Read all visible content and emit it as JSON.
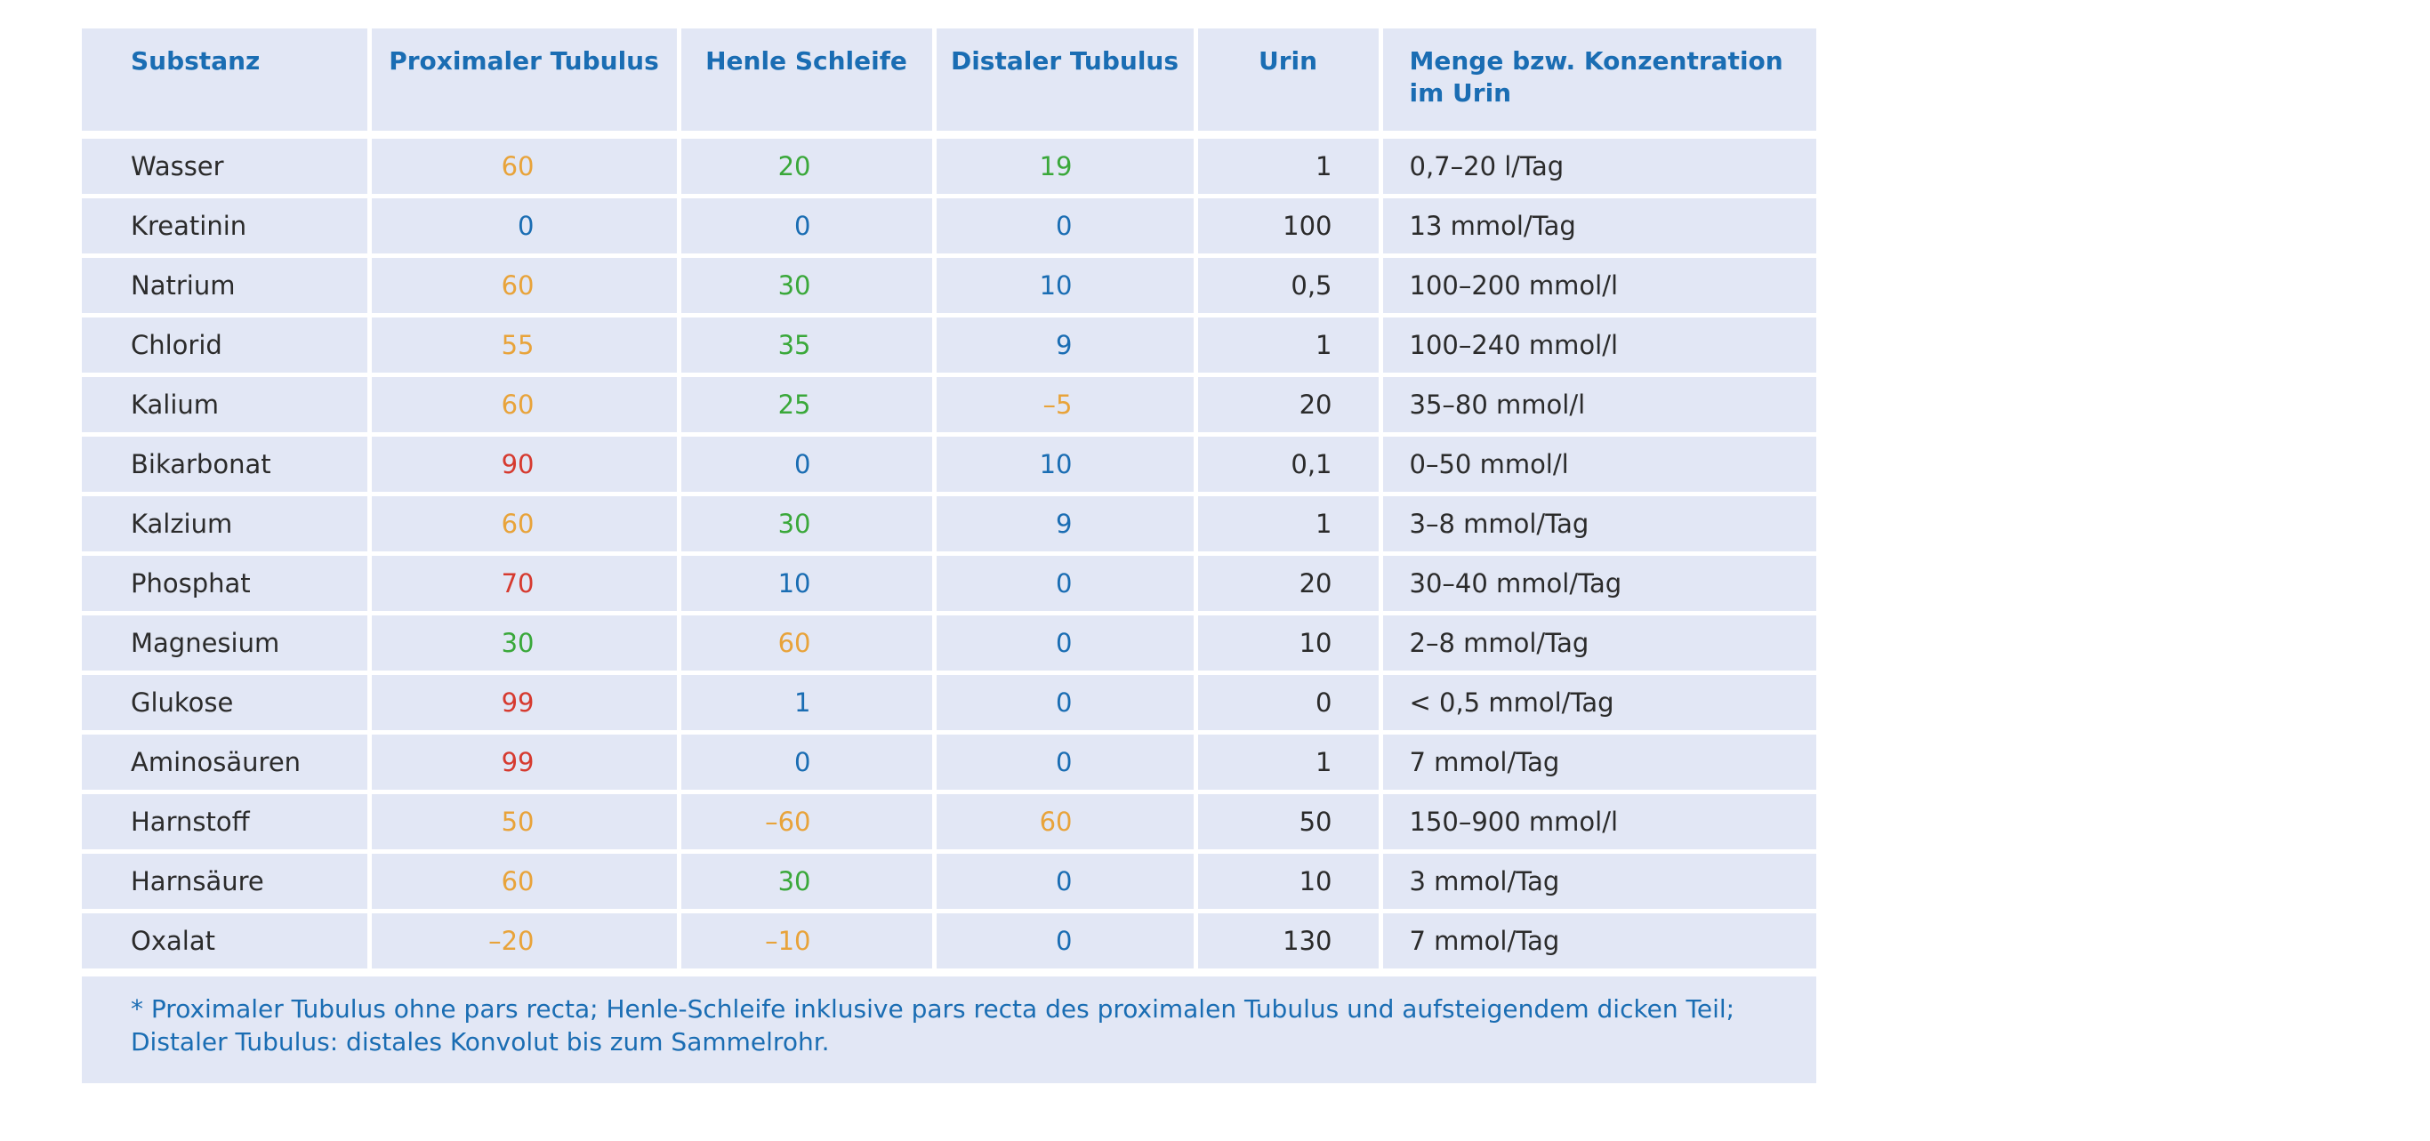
{
  "table": {
    "headers": {
      "substance": "Substanz",
      "proximal": "Proximaler Tubulus",
      "henle": "Henle Schleife",
      "distal": "Distaler Tubulus",
      "urine": "Urin",
      "concentration_line1": "Menge bzw. Konzentration",
      "concentration_line2": "im Urin"
    },
    "colors": {
      "orange": "#e8a33a",
      "green": "#3aa83a",
      "blue": "#1a6db3",
      "red": "#d63a2f",
      "cell_background": "#e2e7f5"
    },
    "rows": [
      {
        "substance": "Wasser",
        "proximal": "60",
        "proximal_color": "orange",
        "henle": "20",
        "henle_color": "green",
        "distal": "19",
        "distal_color": "green",
        "urine": "1",
        "concentration": "0,7–20 l/Tag"
      },
      {
        "substance": "Kreatinin",
        "proximal": "0",
        "proximal_color": "blue",
        "henle": "0",
        "henle_color": "blue",
        "distal": "0",
        "distal_color": "blue",
        "urine": "100",
        "concentration": "13 mmol/Tag"
      },
      {
        "substance": "Natrium",
        "proximal": "60",
        "proximal_color": "orange",
        "henle": "30",
        "henle_color": "green",
        "distal": "10",
        "distal_color": "blue",
        "urine": "0,5",
        "concentration": "100–200 mmol/l"
      },
      {
        "substance": "Chlorid",
        "proximal": "55",
        "proximal_color": "orange",
        "henle": "35",
        "henle_color": "green",
        "distal": "9",
        "distal_color": "blue",
        "urine": "1",
        "concentration": "100–240 mmol/l"
      },
      {
        "substance": "Kalium",
        "proximal": "60",
        "proximal_color": "orange",
        "henle": "25",
        "henle_color": "green",
        "distal": "–5",
        "distal_color": "orange",
        "urine": "20",
        "concentration": "35–80 mmol/l"
      },
      {
        "substance": "Bikarbonat",
        "proximal": "90",
        "proximal_color": "red",
        "henle": "0",
        "henle_color": "blue",
        "distal": "10",
        "distal_color": "blue",
        "urine": "0,1",
        "concentration": "0–50 mmol/l"
      },
      {
        "substance": "Kalzium",
        "proximal": "60",
        "proximal_color": "orange",
        "henle": "30",
        "henle_color": "green",
        "distal": "9",
        "distal_color": "blue",
        "urine": "1",
        "concentration": "3–8 mmol/Tag"
      },
      {
        "substance": "Phosphat",
        "proximal": "70",
        "proximal_color": "red",
        "henle": "10",
        "henle_color": "blue",
        "distal": "0",
        "distal_color": "blue",
        "urine": "20",
        "concentration": "30–40 mmol/Tag"
      },
      {
        "substance": "Magnesium",
        "proximal": "30",
        "proximal_color": "green",
        "henle": "60",
        "henle_color": "orange",
        "distal": "0",
        "distal_color": "blue",
        "urine": "10",
        "concentration": "2–8 mmol/Tag"
      },
      {
        "substance": "Glukose",
        "proximal": "99",
        "proximal_color": "red",
        "henle": "1",
        "henle_color": "blue",
        "distal": "0",
        "distal_color": "blue",
        "urine": "0",
        "concentration": "< 0,5 mmol/Tag"
      },
      {
        "substance": "Aminosäuren",
        "proximal": "99",
        "proximal_color": "red",
        "henle": "0",
        "henle_color": "blue",
        "distal": "0",
        "distal_color": "blue",
        "urine": "1",
        "concentration": "7 mmol/Tag"
      },
      {
        "substance": "Harnstoff",
        "proximal": "50",
        "proximal_color": "orange",
        "henle": "–60",
        "henle_color": "orange",
        "distal": "60",
        "distal_color": "orange",
        "urine": "50",
        "concentration": "150–900 mmol/l"
      },
      {
        "substance": "Harnsäure",
        "proximal": "60",
        "proximal_color": "orange",
        "henle": "30",
        "henle_color": "green",
        "distal": "0",
        "distal_color": "blue",
        "urine": "10",
        "concentration": "3 mmol/Tag"
      },
      {
        "substance": "Oxalat",
        "proximal": "–20",
        "proximal_color": "orange",
        "henle": "–10",
        "henle_color": "orange",
        "distal": "0",
        "distal_color": "blue",
        "urine": "130",
        "concentration": "7 mmol/Tag"
      }
    ],
    "footnote_line1": "* Proximaler Tubulus ohne pars recta; Henle-Schleife inklusive pars recta des proximalen Tubulus und aufsteigendem dicken Teil;",
    "footnote_line2": "Distaler Tubulus: distales Konvolut bis zum Sammelrohr."
  }
}
